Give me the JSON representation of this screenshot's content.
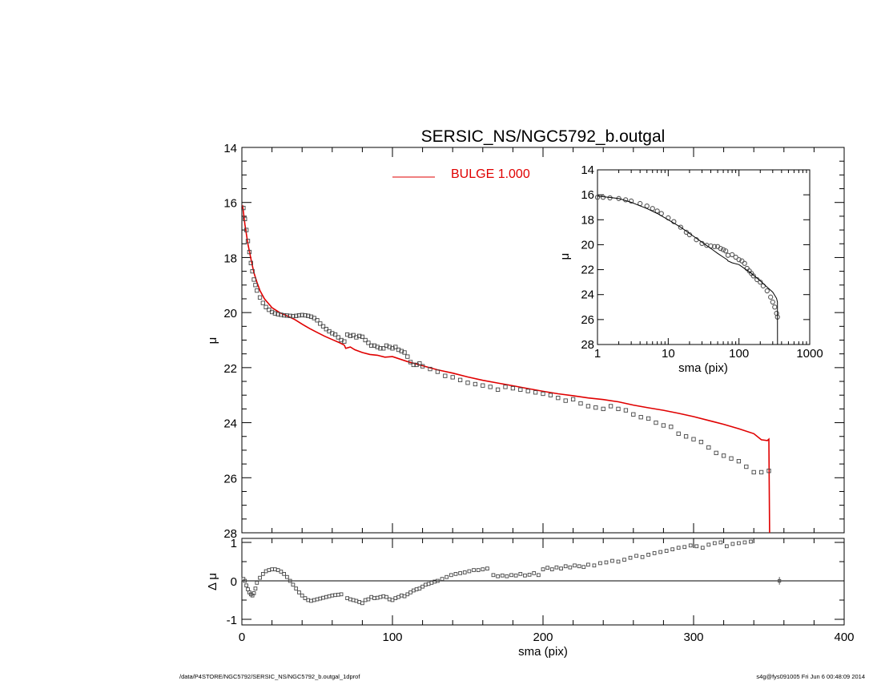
{
  "chart_data": [
    {
      "panel": "main",
      "type": "scatter",
      "title": "SERSIC_NS/NGC5792_b.outgal",
      "xlabel": "",
      "ylabel": "μ",
      "xlim": [
        0,
        400
      ],
      "ylim": [
        28,
        14
      ],
      "y_inverted": true,
      "yticks": [
        "14",
        "16",
        "18",
        "20",
        "22",
        "24",
        "26",
        "28"
      ],
      "legend": {
        "label": "BULGE  1.000",
        "color": "#e00000",
        "placement": "top-center"
      },
      "series": [
        {
          "style": "open-squares",
          "color": "#444444",
          "x": [
            1,
            2,
            3,
            4,
            5,
            6,
            7,
            8,
            9,
            10,
            12,
            14,
            16,
            18,
            20,
            22,
            24,
            26,
            28,
            30,
            32,
            34,
            36,
            38,
            40,
            42,
            44,
            46,
            48,
            50,
            52,
            54,
            56,
            58,
            60,
            62,
            64,
            66,
            68,
            70,
            72,
            74,
            76,
            78,
            80,
            82,
            84,
            86,
            88,
            90,
            92,
            94,
            96,
            98,
            100,
            102,
            104,
            106,
            108,
            110,
            112,
            114,
            116,
            118,
            120,
            125,
            130,
            135,
            140,
            145,
            150,
            155,
            160,
            165,
            170,
            175,
            180,
            185,
            190,
            195,
            200,
            205,
            210,
            215,
            220,
            225,
            230,
            235,
            240,
            245,
            250,
            255,
            260,
            265,
            270,
            275,
            280,
            285,
            290,
            295,
            300,
            305,
            310,
            315,
            320,
            325,
            330,
            335,
            340,
            345,
            350
          ],
          "y": [
            16.2,
            16.6,
            17.0,
            17.4,
            17.8,
            18.2,
            18.5,
            18.8,
            19.0,
            19.2,
            19.45,
            19.65,
            19.8,
            19.9,
            19.98,
            20.03,
            20.06,
            20.08,
            20.1,
            20.11,
            20.12,
            20.13,
            20.12,
            20.1,
            20.09,
            20.1,
            20.12,
            20.15,
            20.2,
            20.28,
            20.4,
            20.5,
            20.6,
            20.68,
            20.75,
            20.8,
            20.9,
            21.0,
            21.05,
            20.8,
            20.85,
            20.82,
            20.9,
            20.85,
            20.88,
            21.0,
            21.1,
            21.2,
            21.2,
            21.25,
            21.3,
            21.3,
            21.2,
            21.25,
            21.3,
            21.25,
            21.35,
            21.4,
            21.45,
            21.6,
            21.8,
            21.9,
            21.9,
            21.85,
            21.95,
            22.05,
            22.15,
            22.3,
            22.35,
            22.45,
            22.55,
            22.6,
            22.65,
            22.7,
            22.8,
            22.7,
            22.75,
            22.8,
            22.85,
            22.9,
            22.95,
            23.0,
            23.1,
            23.2,
            23.15,
            23.3,
            23.4,
            23.45,
            23.5,
            23.4,
            23.5,
            23.55,
            23.7,
            23.8,
            23.85,
            24.0,
            24.1,
            24.15,
            24.4,
            24.5,
            24.6,
            24.7,
            24.9,
            25.1,
            25.2,
            25.3,
            25.4,
            25.6,
            25.8,
            25.8,
            25.75
          ]
        },
        {
          "name": "BULGE  1.000",
          "style": "line",
          "color": "#e00000",
          "x": [
            0.5,
            2,
            4,
            6,
            8,
            10,
            12,
            15,
            20,
            25,
            30,
            35,
            40,
            45,
            50,
            55,
            60,
            65,
            68,
            69,
            72,
            75,
            80,
            85,
            90,
            95,
            100,
            110,
            120,
            130,
            140,
            150,
            160,
            170,
            180,
            190,
            200,
            210,
            220,
            230,
            240,
            250,
            260,
            270,
            280,
            290,
            300,
            310,
            320,
            330,
            340,
            345,
            349,
            350,
            350.5
          ],
          "y": [
            16.1,
            16.8,
            17.5,
            18.05,
            18.55,
            18.9,
            19.2,
            19.5,
            19.82,
            20.0,
            20.12,
            20.25,
            20.42,
            20.58,
            20.72,
            20.86,
            20.98,
            21.1,
            21.18,
            21.3,
            21.25,
            21.35,
            21.45,
            21.52,
            21.55,
            21.62,
            21.6,
            21.78,
            21.93,
            22.08,
            22.2,
            22.34,
            22.46,
            22.56,
            22.66,
            22.76,
            22.86,
            22.95,
            23.02,
            23.1,
            23.16,
            23.24,
            23.36,
            23.46,
            23.55,
            23.66,
            23.78,
            23.92,
            24.06,
            24.22,
            24.4,
            24.62,
            24.65,
            24.6,
            28.0
          ]
        }
      ]
    },
    {
      "panel": "residual",
      "type": "scatter",
      "xlabel": "sma (pix)",
      "ylabel": "Δ μ",
      "xlim": [
        0,
        400
      ],
      "ylim": [
        -1.1,
        1.1
      ],
      "xticks": [
        "0",
        "100",
        "200",
        "300",
        "400"
      ],
      "yticks": [
        "1",
        "0",
        "-1"
      ],
      "reference_line": 0,
      "error_bar": {
        "x": 357,
        "y": 0.0,
        "err": 0.1
      },
      "series": [
        {
          "style": "open-squares",
          "color": "#444444",
          "x": [
            1,
            2,
            3,
            4,
            5,
            6,
            7,
            8,
            9,
            10,
            12,
            14,
            16,
            18,
            20,
            22,
            24,
            26,
            28,
            30,
            32,
            34,
            36,
            38,
            40,
            42,
            44,
            46,
            48,
            50,
            52,
            54,
            56,
            58,
            60,
            62,
            64,
            66,
            70,
            72,
            74,
            76,
            78,
            80,
            82,
            84,
            86,
            88,
            90,
            92,
            94,
            96,
            98,
            100,
            102,
            104,
            106,
            108,
            110,
            112,
            114,
            116,
            118,
            120,
            122,
            124,
            126,
            128,
            130,
            133,
            136,
            139,
            142,
            145,
            148,
            151,
            154,
            157,
            160,
            163,
            167,
            170,
            173,
            176,
            179,
            182,
            185,
            188,
            191,
            194,
            197,
            200,
            203,
            206,
            209,
            212,
            215,
            218,
            221,
            224,
            227,
            230,
            234,
            238,
            242,
            246,
            250,
            254,
            258,
            262,
            266,
            270,
            274,
            278,
            282,
            286,
            290,
            294,
            298,
            302,
            306,
            310,
            314,
            318,
            322,
            326,
            330,
            334,
            338
          ],
          "y": [
            0.05,
            0.0,
            -0.12,
            -0.22,
            -0.3,
            -0.35,
            -0.38,
            -0.32,
            -0.2,
            -0.05,
            0.08,
            0.18,
            0.25,
            0.28,
            0.3,
            0.3,
            0.28,
            0.24,
            0.18,
            0.1,
            0.0,
            -0.1,
            -0.2,
            -0.3,
            -0.38,
            -0.45,
            -0.5,
            -0.52,
            -0.5,
            -0.48,
            -0.46,
            -0.44,
            -0.42,
            -0.4,
            -0.38,
            -0.37,
            -0.36,
            -0.35,
            -0.45,
            -0.48,
            -0.5,
            -0.52,
            -0.55,
            -0.58,
            -0.5,
            -0.48,
            -0.42,
            -0.45,
            -0.44,
            -0.42,
            -0.4,
            -0.42,
            -0.48,
            -0.5,
            -0.45,
            -0.42,
            -0.38,
            -0.4,
            -0.35,
            -0.3,
            -0.25,
            -0.22,
            -0.2,
            -0.15,
            -0.1,
            -0.08,
            -0.05,
            -0.02,
            0.0,
            0.05,
            0.1,
            0.15,
            0.18,
            0.2,
            0.22,
            0.25,
            0.28,
            0.28,
            0.3,
            0.32,
            0.15,
            0.12,
            0.14,
            0.12,
            0.15,
            0.14,
            0.18,
            0.14,
            0.16,
            0.2,
            0.15,
            0.3,
            0.34,
            0.3,
            0.35,
            0.32,
            0.38,
            0.35,
            0.4,
            0.38,
            0.36,
            0.42,
            0.4,
            0.46,
            0.48,
            0.52,
            0.5,
            0.55,
            0.6,
            0.65,
            0.62,
            0.68,
            0.72,
            0.75,
            0.78,
            0.82,
            0.86,
            0.88,
            0.92,
            0.9,
            0.86,
            0.94,
            0.98,
            1.0,
            0.9,
            0.96,
            0.98,
            1.0,
            1.02
          ]
        }
      ]
    },
    {
      "panel": "inset",
      "type": "scatter",
      "xlabel": "sma (pix)",
      "ylabel": "μ",
      "xscale": "log",
      "xlim": [
        1,
        1000
      ],
      "ylim": [
        28,
        14
      ],
      "y_inverted": true,
      "xticks": [
        "1",
        "10",
        "100",
        "1000"
      ],
      "yticks": [
        "14",
        "16",
        "18",
        "20",
        "22",
        "24",
        "26",
        "28"
      ],
      "series": [
        {
          "style": "open-circles",
          "color": "#555555",
          "x": [
            1,
            1.2,
            1.5,
            2,
            2.5,
            3,
            4,
            5,
            6,
            7,
            8,
            10,
            12,
            15,
            18,
            20,
            25,
            30,
            35,
            40,
            45,
            50,
            55,
            60,
            65,
            70,
            80,
            90,
            100,
            110,
            120,
            130,
            140,
            150,
            160,
            180,
            200,
            220,
            250,
            280,
            300,
            320,
            340,
            350
          ],
          "y": [
            16.2,
            16.2,
            16.25,
            16.3,
            16.4,
            16.5,
            16.7,
            16.9,
            17.1,
            17.3,
            17.5,
            17.85,
            18.15,
            18.6,
            19.0,
            19.2,
            19.6,
            19.9,
            20.05,
            20.1,
            20.15,
            20.15,
            20.3,
            20.4,
            20.5,
            20.85,
            20.8,
            21.0,
            21.2,
            21.3,
            21.5,
            21.9,
            22.1,
            22.3,
            22.5,
            22.8,
            23.0,
            23.3,
            23.7,
            24.2,
            24.6,
            25.0,
            25.5,
            25.8
          ]
        },
        {
          "style": "line",
          "color": "#000000",
          "x": [
            1,
            2,
            3,
            5,
            7,
            10,
            15,
            20,
            30,
            40,
            50,
            60,
            68,
            70,
            80,
            100,
            150,
            200,
            250,
            300,
            340,
            350,
            350.5
          ],
          "y": [
            16.1,
            16.3,
            16.6,
            17.1,
            17.5,
            18.0,
            18.6,
            19.1,
            19.8,
            20.3,
            20.7,
            21.0,
            21.2,
            21.3,
            21.45,
            21.6,
            22.3,
            22.9,
            23.4,
            23.8,
            24.3,
            24.6,
            28.0
          ]
        }
      ]
    }
  ],
  "footer": {
    "left": "/data/P4STORE/NGC5792/SERSIC_NS/NGC5792_b.outgal_1dprof",
    "right": "s4g@fys091005  Fri Jun  6 00:48:09 2014"
  }
}
